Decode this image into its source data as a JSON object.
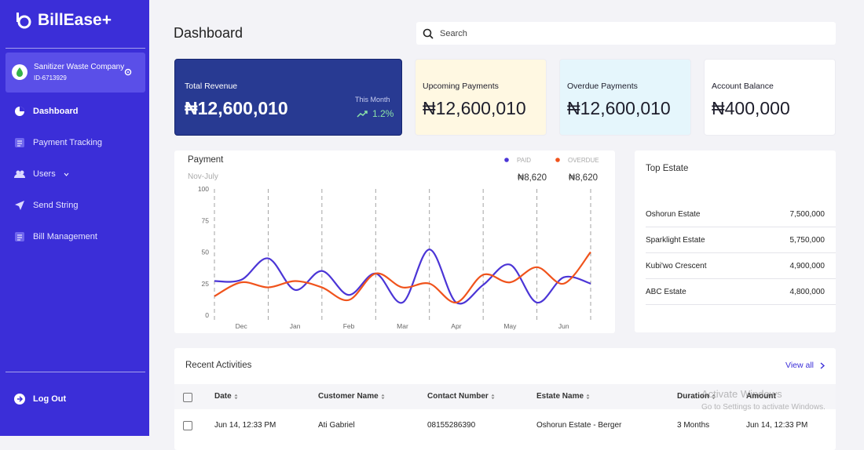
{
  "sidebar": {
    "brand": "BillEase+",
    "company": {
      "name": "Sanitizer Waste Company",
      "id": "ID-6713929"
    },
    "nav": [
      "Dashboard",
      "Payment Tracking",
      "Users",
      "Send String",
      "Bill Management"
    ],
    "logout": "Log Out"
  },
  "header": {
    "title": "Dashboard",
    "search_placeholder": "Search"
  },
  "cards": [
    {
      "label": "Total Revenue",
      "value": "₦12,600,010",
      "period": "This Month",
      "change": "1.2%"
    },
    {
      "label": "Upcoming Payments",
      "value": "₦12,600,010"
    },
    {
      "label": "Overdue Payments",
      "value": "₦12,600,010"
    },
    {
      "label": "Account Balance",
      "value": "₦400,000"
    }
  ],
  "chart_data": {
    "type": "line",
    "title": "Payment",
    "subtitle": "Nov-July",
    "categories": [
      null,
      "Dec",
      null,
      "Jan",
      null,
      "Feb",
      null,
      "Mar",
      null,
      "Apr",
      null,
      "May",
      null,
      "Jun",
      null
    ],
    "series": [
      {
        "name": "PAID",
        "color": "#4b35d6",
        "amount": "₦8,620",
        "values": [
          27,
          28,
          45,
          20,
          35,
          16,
          33,
          10,
          52,
          10,
          24,
          40,
          10,
          30,
          25
        ]
      },
      {
        "name": "OVERDUE",
        "color": "#f0531c",
        "amount": "₦8,620",
        "values": [
          15,
          26,
          22,
          27,
          22,
          12,
          33,
          22,
          25,
          10,
          32,
          26,
          38,
          25,
          50
        ]
      }
    ],
    "ylim": [
      0,
      100
    ],
    "yticks": [
      0,
      25,
      50,
      75,
      100
    ]
  },
  "top_estate": {
    "title": "Top Estate",
    "rows": [
      [
        "Oshorun Estate",
        "7,500,000"
      ],
      [
        "Sparklight Estate",
        "5,750,000"
      ],
      [
        "Kubi'wo Crescent",
        "4,900,000"
      ],
      [
        "ABC Estate",
        "4,800,000"
      ]
    ]
  },
  "recent_activities": {
    "title": "Recent Activities",
    "view_all": "View all",
    "columns": [
      "Date",
      "Customer Name",
      "Contact Number",
      "Estate Name",
      "Duration",
      "Amount"
    ],
    "rows": [
      [
        "Jun 14, 12:33 PM",
        "Ati Gabriel",
        "08155286390",
        "Oshorun Estate - Berger",
        "3 Months",
        "Jun 14, 12:33 PM"
      ]
    ]
  },
  "watermark": {
    "title": "Activate Windows",
    "subtitle": "Go to Settings to activate Windows."
  }
}
